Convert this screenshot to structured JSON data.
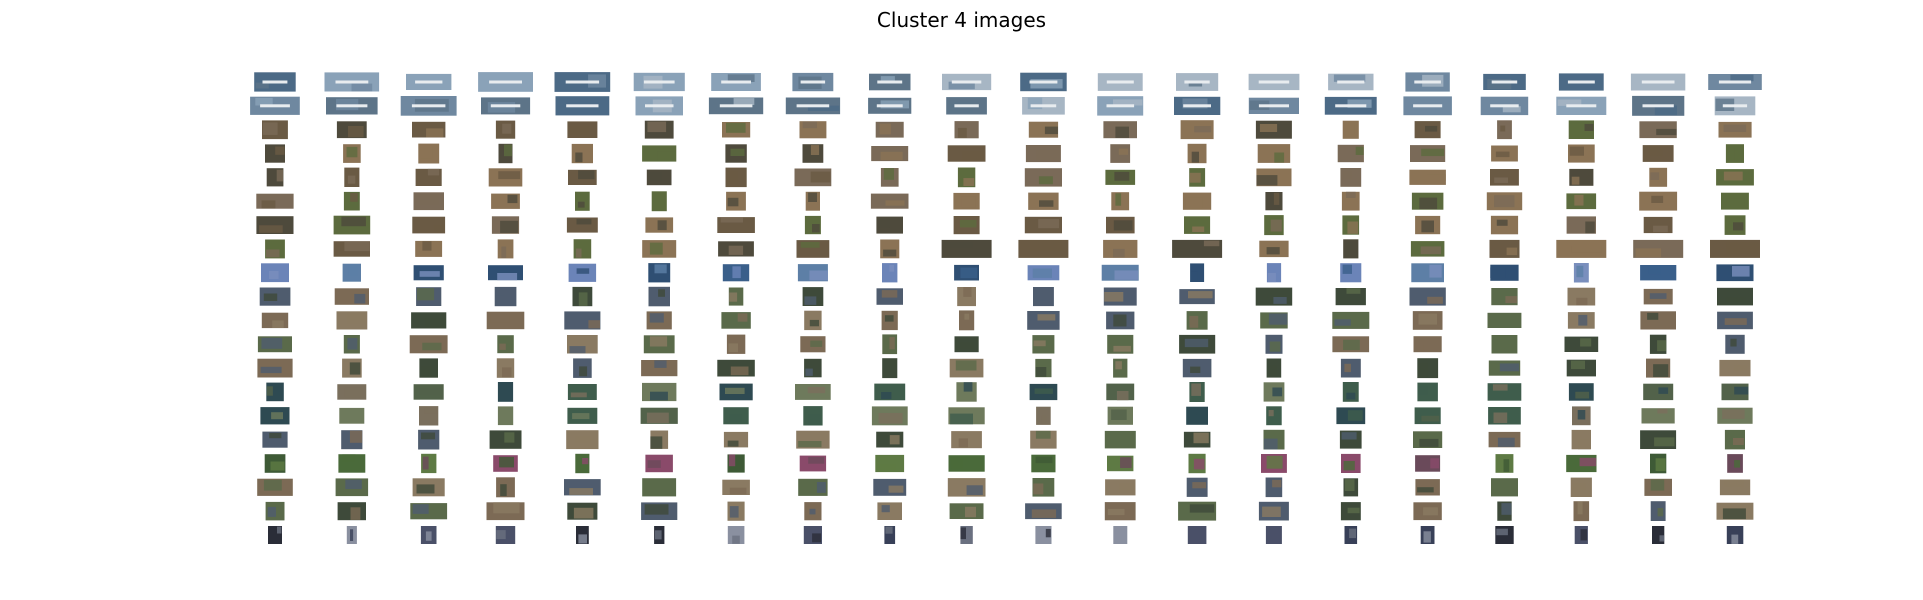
{
  "figure": {
    "title": "Cluster 4 images"
  },
  "chart_data": {
    "type": "image_grid",
    "title": "Cluster 4 images",
    "rows": 20,
    "cols": 20,
    "row_themes": [
      "airplanes",
      "airplanes",
      "animals",
      "animals",
      "animals",
      "animals",
      "animals",
      "animals",
      "water",
      "mixed",
      "mixed",
      "mixed",
      "mixed",
      "birds",
      "birds",
      "mixed",
      "flowers",
      "mixed",
      "mixed",
      "dark-tall"
    ],
    "palettes": {
      "airplanes": [
        "#6f88a0",
        "#8aa2b8",
        "#5d7488",
        "#a7b6c4",
        "#4c6a86"
      ],
      "animals": [
        "#6a5a44",
        "#8b7355",
        "#5c6b3e",
        "#7a6a58",
        "#4e4a3c"
      ],
      "water": [
        "#3a5f8a",
        "#5d7fa6",
        "#7a8fbd",
        "#2f4f73",
        "#6b84b8"
      ],
      "mixed": [
        "#5a6a4a",
        "#7c6a55",
        "#4f5c6e",
        "#8a7a62",
        "#3e4a3a"
      ],
      "birds": [
        "#52624a",
        "#6e7a5c",
        "#3f5d4c",
        "#7a6f5d",
        "#2e4a52"
      ],
      "flowers": [
        "#4a6a3a",
        "#8a4a6a",
        "#5e7a44",
        "#6a4a5a",
        "#3e5a36"
      ],
      "dark-tall": [
        "#2a2d38",
        "#4a5068",
        "#6a7080",
        "#384058",
        "#8a90a0"
      ]
    }
  }
}
